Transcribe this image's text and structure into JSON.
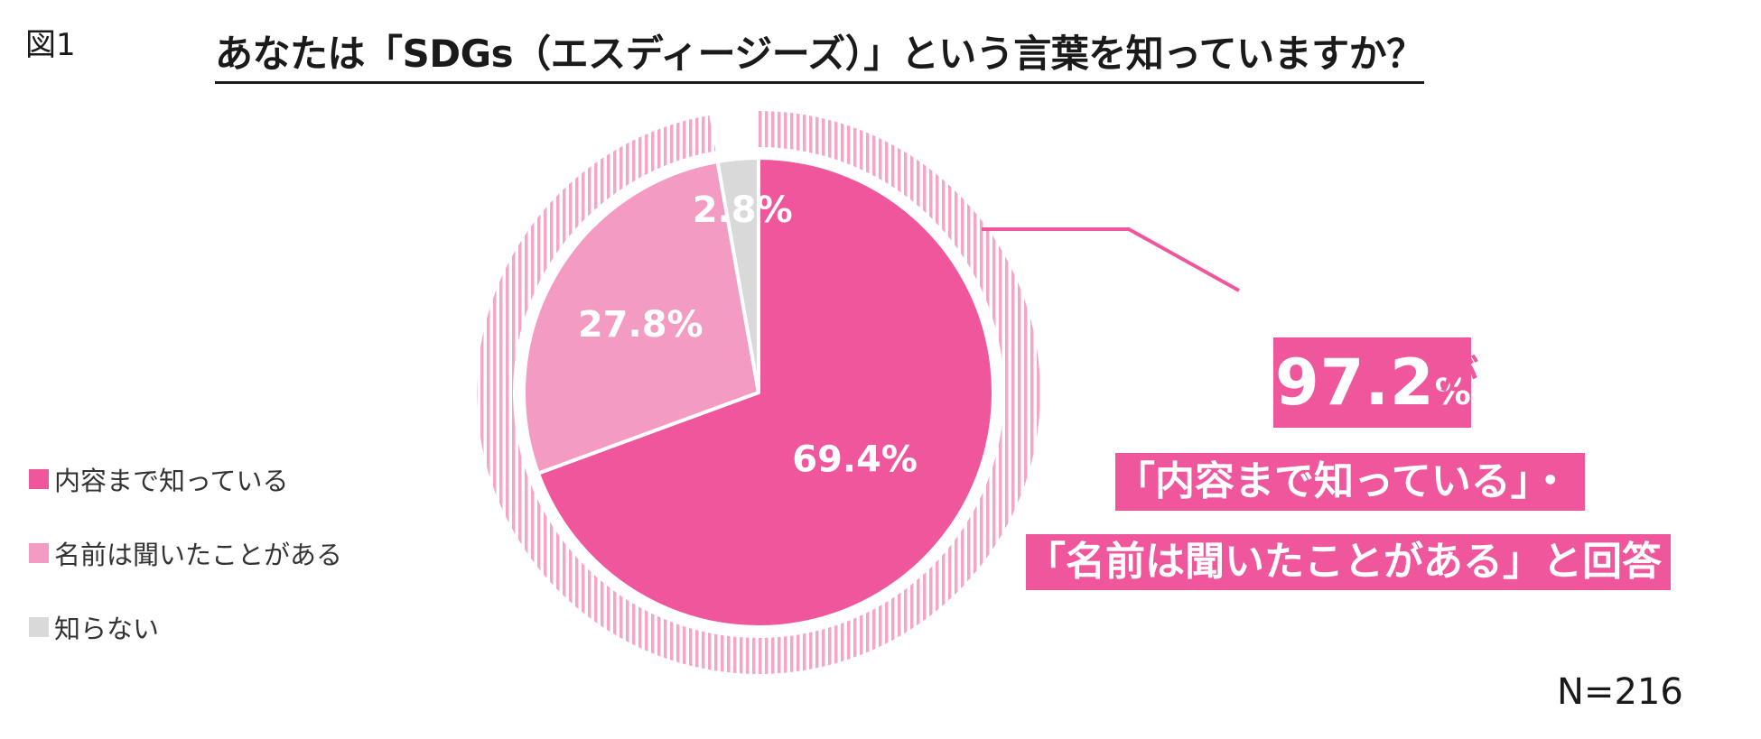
{
  "figure_label": "図1",
  "chart_data": {
    "type": "pie",
    "title": "あなたは「SDGs（エスディージーズ）」という言葉を知っていますか？",
    "slices": [
      {
        "label": "内容まで知っている",
        "value": 69.4,
        "display": "69.4%",
        "color": "#ef569c"
      },
      {
        "label": "名前は聞いたことがある",
        "value": 27.8,
        "display": "27.8%",
        "color": "#f49bc4"
      },
      {
        "label": "知らない",
        "value": 2.8,
        "display": "2.8%",
        "color": "#d9d9d9"
      }
    ],
    "legend_position": "left",
    "sample_size": "N=216",
    "outer_ring_color": "#f3a6c8"
  },
  "callout": {
    "number": "97.2",
    "percent": "%",
    "particle": "が",
    "line2": "「内容まで知っている」・",
    "line3": "「名前は聞いたことがある」と回答",
    "color": "#ef569c"
  }
}
